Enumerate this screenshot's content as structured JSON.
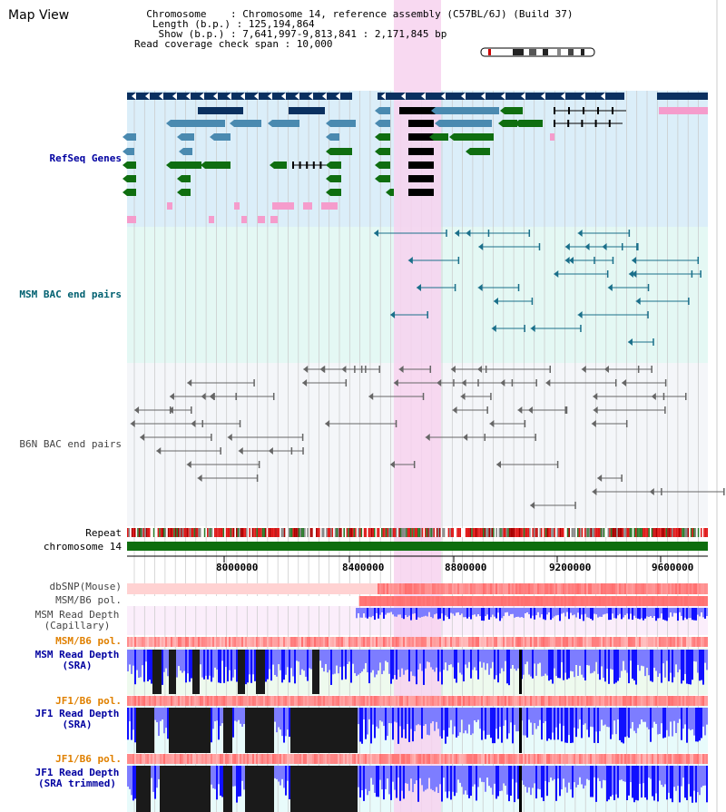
{
  "header": {
    "title": "Map View",
    "info_lines": [
      "  Chromosome    : Chromosome 14, reference assembly (C57BL/6J) (Build 37)",
      "   Length (b.p.) : 125,194,864",
      "    Show (b.p.) : 7,641,997-9,813,841 : 2,171,845 bp",
      "Read coverage check span : 10,000"
    ]
  },
  "tracks": {
    "refseq": "RefSeq Genes",
    "msm_bac": "MSM BAC end pairs",
    "b6n_bac": "B6N BAC end pairs",
    "repeat": "Repeat",
    "chromosome": "chromosome 14",
    "dbsnp": "dbSNP(Mouse)",
    "msm_b6_pol_1": "MSM/B6 pol.",
    "msm_depth_cap": "MSM Read Depth\n(Capillary)",
    "msm_b6_pol_2": "MSM/B6 pol.",
    "msm_depth_sra": "MSM Read Depth\n(SRA)",
    "jf1_b6_pol_1": "JF1/B6 pol.",
    "jf1_depth_sra": "JF1 Read Depth\n(SRA)",
    "jf1_b6_pol_2": "JF1/B6 pol.",
    "jf1_depth_trim": "JF1 Read Depth\n(SRA trimmed)"
  },
  "ruler": {
    "ticks": [
      "8000000",
      "8400000",
      "8800000",
      "9200000",
      "9600000"
    ]
  },
  "colors": {
    "refseq_bg": "#dbeef9",
    "msm_bg": "#e4f8f4",
    "b6n_bg": "#f4f6f9",
    "highlight": "#f7d2ef",
    "navy": "#0a3060",
    "steel": "#4a8ab0",
    "green": "#0f6e10",
    "pink": "#f59ccc",
    "chrom": "#0e6e0e",
    "depth_blue": "#1010ff",
    "depth_light": "#7d7dff"
  }
}
